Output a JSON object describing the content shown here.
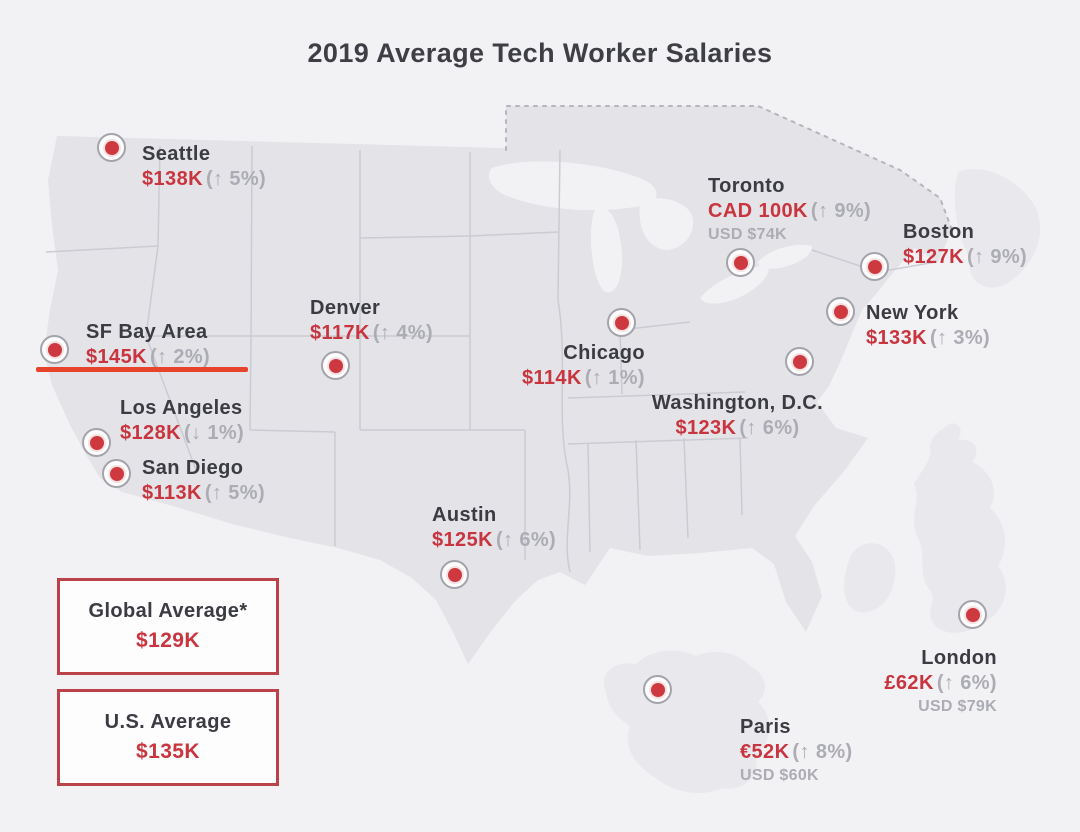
{
  "title": "2019 Average Tech Worker Salaries",
  "cities": [
    {
      "id": "seattle",
      "name": "Seattle",
      "salary": "$138K",
      "change": "(↑ 5%)"
    },
    {
      "id": "sf-bay-area",
      "name": "SF Bay Area",
      "salary": "$145K",
      "change": "(↑ 2%)",
      "underline": true
    },
    {
      "id": "los-angeles",
      "name": "Los Angeles",
      "salary": "$128K",
      "change": "(↓ 1%)"
    },
    {
      "id": "san-diego",
      "name": "San Diego",
      "salary": "$113K",
      "change": "(↑ 5%)"
    },
    {
      "id": "denver",
      "name": "Denver",
      "salary": "$117K",
      "change": "(↑ 4%)"
    },
    {
      "id": "austin",
      "name": "Austin",
      "salary": "$125K",
      "change": "(↑ 6%)"
    },
    {
      "id": "chicago",
      "name": "Chicago",
      "salary": "$114K",
      "change": "(↑ 1%)"
    },
    {
      "id": "toronto",
      "name": "Toronto",
      "salary": "CAD 100K",
      "change": "(↑ 9%)",
      "usd": "USD $74K"
    },
    {
      "id": "boston",
      "name": "Boston",
      "salary": "$127K",
      "change": "(↑ 9%)"
    },
    {
      "id": "new-york",
      "name": "New York",
      "salary": "$133K",
      "change": "(↑ 3%)"
    },
    {
      "id": "washington-dc",
      "name": "Washington, D.C.",
      "salary": "$123K",
      "change": "(↑ 6%)"
    },
    {
      "id": "london",
      "name": "London",
      "salary": "£62K",
      "change": "(↑ 6%)",
      "usd": "USD $79K"
    },
    {
      "id": "paris",
      "name": "Paris",
      "salary": "€52K",
      "change": "(↑ 8%)",
      "usd": "USD $60K"
    }
  ],
  "boxes": [
    {
      "label": "Global Average*",
      "value": "$129K"
    },
    {
      "label": "U.S. Average",
      "value": "$135K"
    }
  ],
  "colors": {
    "background": "#F2F2F5",
    "land": "#E3E3E8",
    "land_secondary": "#E8E8ED",
    "state_border": "#CBCBD3",
    "dashed_border": "#B5B5BD",
    "marker_red": "#CE3940",
    "marker_ring": "#A3A3AB",
    "city_name_text": "#3B3B42",
    "salary_text": "#C9353E",
    "muted_text": "#ACACB4",
    "underline": "#E8432B",
    "box_border": "#BC424A"
  }
}
